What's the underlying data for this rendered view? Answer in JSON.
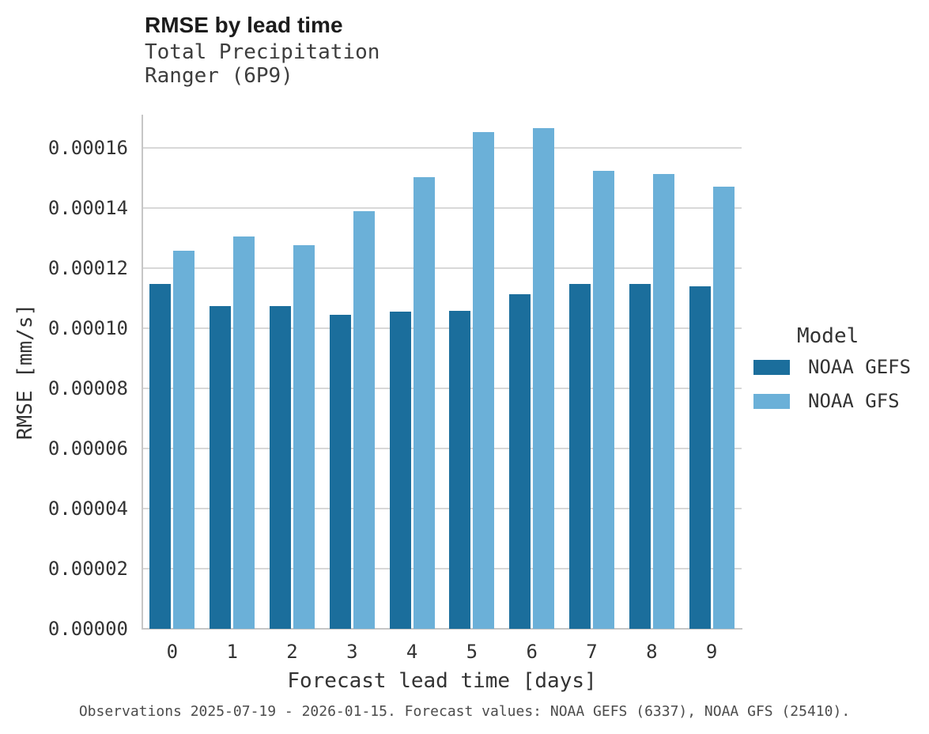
{
  "chart_data": {
    "type": "bar",
    "title": "RMSE by lead time",
    "subtitle": [
      "Total Precipitation",
      "Ranger (6P9)"
    ],
    "xlabel": "Forecast lead time [days]",
    "ylabel": "RMSE [mm/s]",
    "categories": [
      "0",
      "1",
      "2",
      "3",
      "4",
      "5",
      "6",
      "7",
      "8",
      "9"
    ],
    "series": [
      {
        "name": "NOAA GEFS",
        "color": "#1b6e9c",
        "values": [
          0.0001147,
          0.0001073,
          0.0001073,
          0.0001045,
          0.0001055,
          0.0001058,
          0.0001113,
          0.0001147,
          0.0001147,
          0.000114
        ]
      },
      {
        "name": "NOAA GFS",
        "color": "#6bb0d8",
        "values": [
          0.0001257,
          0.0001304,
          0.0001275,
          0.000139,
          0.0001502,
          0.0001653,
          0.0001664,
          0.0001524,
          0.0001513,
          0.0001471
        ]
      }
    ],
    "ylim": [
      0,
      0.000171
    ],
    "yticks": {
      "values": [
        0.0,
        2e-05,
        4e-05,
        6e-05,
        8e-05,
        0.0001,
        0.00012,
        0.00014,
        0.00016
      ],
      "labels": [
        "0.00000",
        "0.00002",
        "0.00004",
        "0.00006",
        "0.00008",
        "0.00010",
        "0.00012",
        "0.00014",
        "0.00016"
      ]
    },
    "grid": true,
    "legend": {
      "title": "Model",
      "position": "right"
    },
    "caption": "Observations 2025-07-19 - 2026-01-15. Forecast values: NOAA GEFS (6337), NOAA GFS (25410)."
  },
  "colors": {
    "grid": "#d8d8d8",
    "spine": "#c6c6c6",
    "title_text": "#1c1c1c",
    "axis_text": "#333333",
    "caption_text": "#4b4b4b",
    "background": "#ffffff"
  }
}
